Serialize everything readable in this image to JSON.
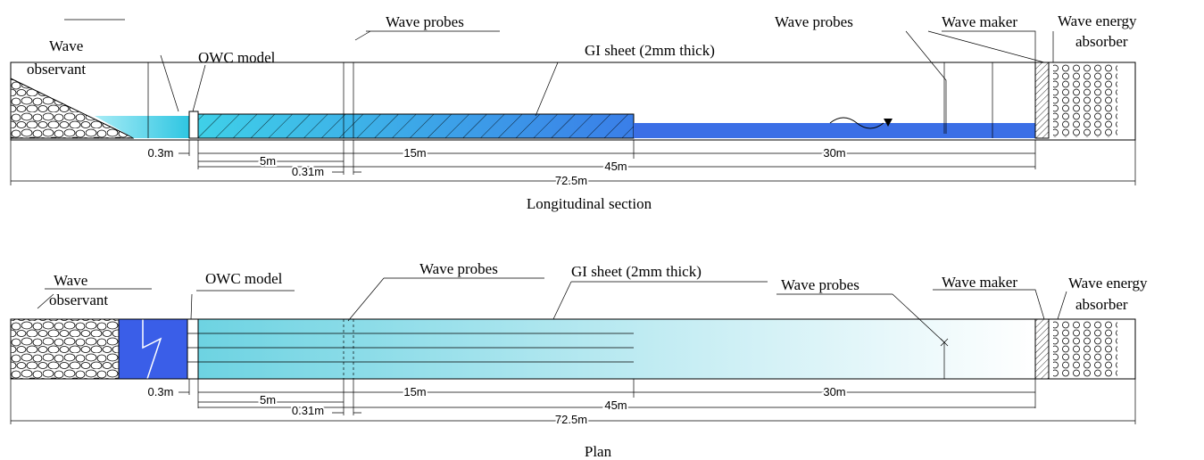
{
  "longitudinal_section": {
    "labels": [
      "Wave",
      "observant",
      "OWC model",
      "Wave probes",
      "GI sheet (2mm thick)",
      "Wave probes",
      "Wave maker",
      "Wave energy",
      "absorber"
    ],
    "dimensions": [
      "0.3m",
      "5m",
      "0.31m",
      "15m",
      "45m",
      "30m",
      "72.5m"
    ],
    "caption": "Longitudinal section"
  },
  "plan": {
    "labels": [
      "Wave",
      "observant",
      "OWC model",
      "Wave probes",
      "GI sheet (2mm thick)",
      "Wave probes",
      "Wave maker",
      "Wave energy",
      "absorber"
    ],
    "dimensions": [
      "0.3m",
      "5m",
      "0.31m",
      "15m",
      "45m",
      "30m",
      "72.5m"
    ],
    "caption": "Plan"
  }
}
